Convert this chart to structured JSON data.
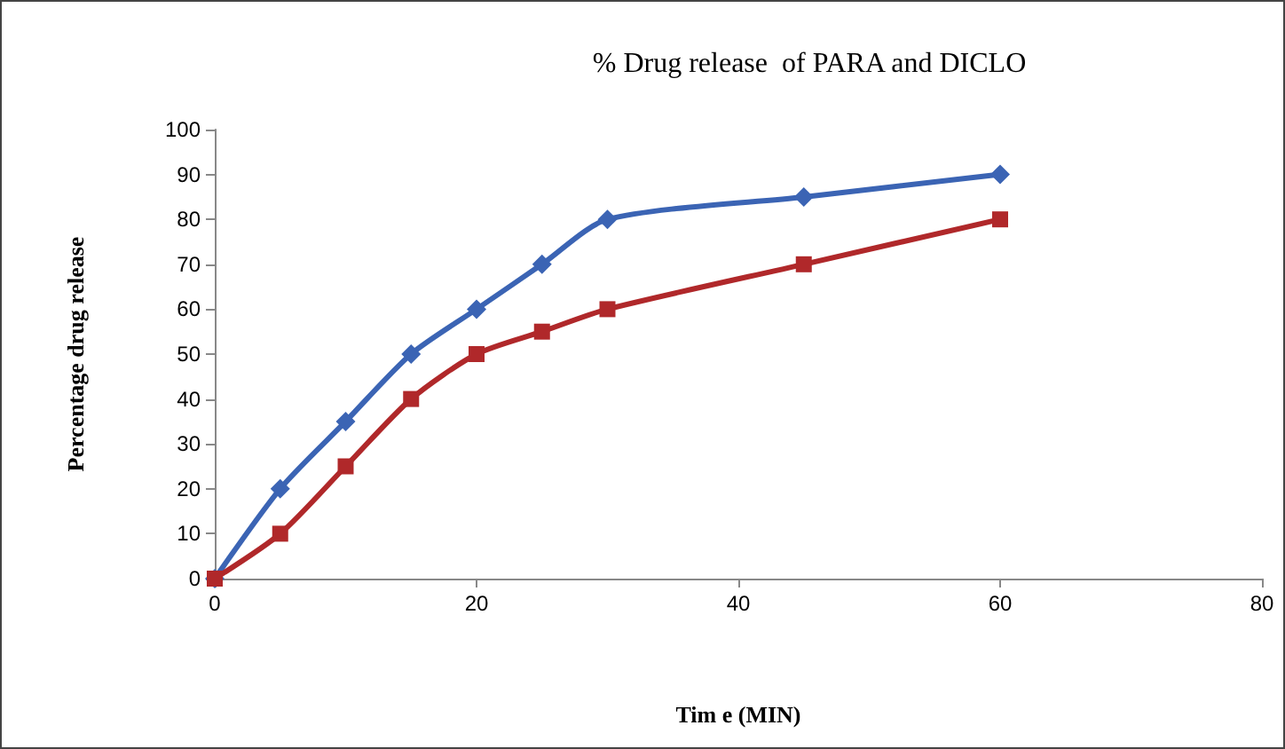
{
  "chart_data": {
    "type": "line",
    "title": "% Drug release  of PARA and DICLO",
    "xlabel": "Tim e (MIN)",
    "ylabel": "Percentage drug release",
    "x": [
      0,
      5,
      10,
      15,
      20,
      25,
      30,
      45,
      60
    ],
    "series": [
      {
        "color": "#3b64b4",
        "marker": "diamond",
        "values": [
          0,
          20,
          35,
          50,
          60,
          70,
          80,
          85,
          90
        ]
      },
      {
        "color": "#b0282a",
        "marker": "square",
        "values": [
          0,
          10,
          25,
          40,
          50,
          55,
          60,
          70,
          80
        ]
      }
    ],
    "xlim": [
      0,
      80
    ],
    "xticks": [
      0,
      20,
      40,
      60,
      80
    ],
    "ylim": [
      0,
      100
    ],
    "yticks": [
      0,
      10,
      20,
      30,
      40,
      50,
      60,
      70,
      80,
      90,
      100
    ],
    "grid": false,
    "line_style": "solid"
  }
}
